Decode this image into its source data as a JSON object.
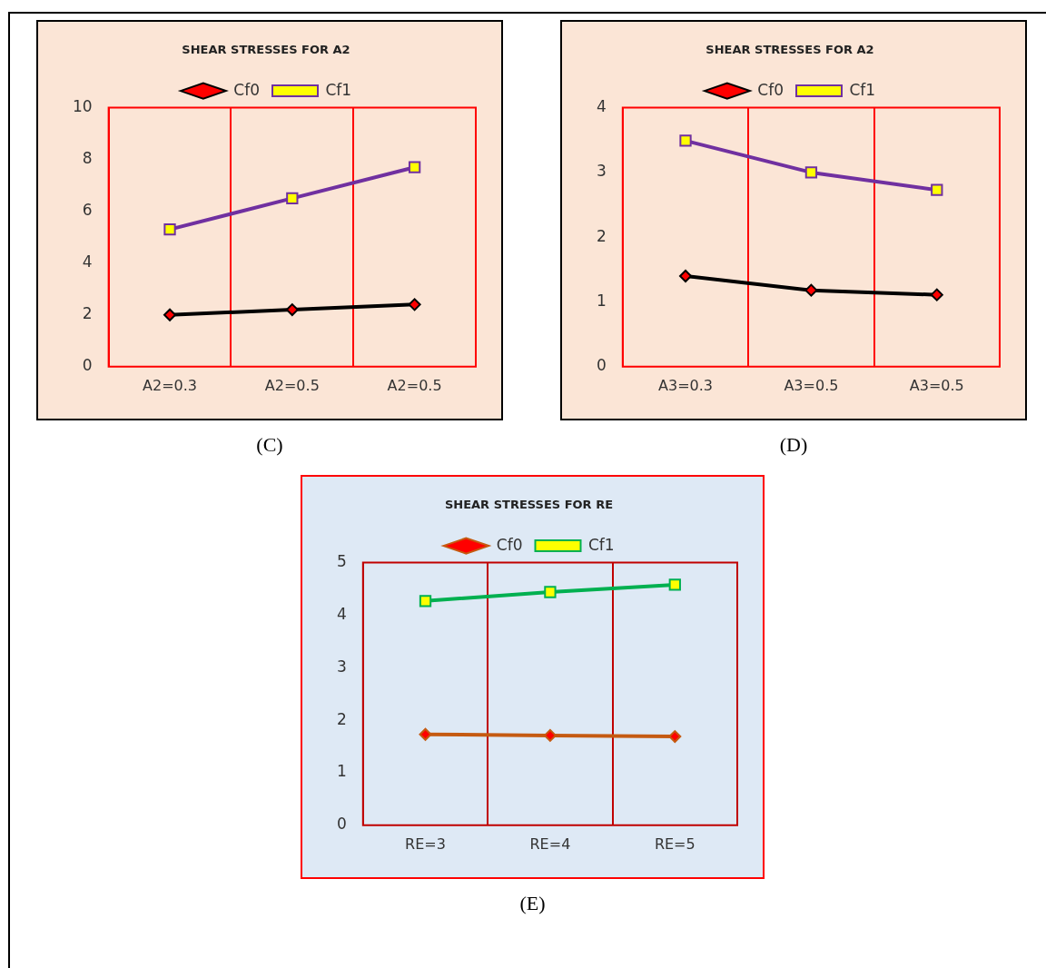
{
  "chart_data": [
    {
      "type": "line",
      "title": "SHEAR STRESSES FOR A2",
      "categories": [
        "A2=0.3",
        "A2=0.5",
        "A2=0.5"
      ],
      "series": [
        {
          "name": "Cf0",
          "color": "#000000",
          "marker": "diamond",
          "values": [
            2.0,
            2.2,
            2.4
          ]
        },
        {
          "name": "Cf1",
          "color": "#7030a0",
          "marker": "square",
          "values": [
            5.3,
            6.5,
            7.7
          ]
        }
      ],
      "ylim": [
        0,
        10
      ],
      "yticks": [
        0,
        2,
        4,
        6,
        8,
        10
      ],
      "grid": "x",
      "legend": "top",
      "annotations": [
        "(C)"
      ]
    },
    {
      "type": "line",
      "title": "SHEAR STRESSES FOR A2",
      "categories": [
        "A3=0.3",
        "A3=0.5",
        "A3=0.5"
      ],
      "series": [
        {
          "name": "Cf0",
          "color": "#000000",
          "marker": "diamond",
          "values": [
            1.4,
            1.18,
            1.11
          ]
        },
        {
          "name": "Cf1",
          "color": "#7030a0",
          "marker": "square",
          "values": [
            3.49,
            3.0,
            2.73
          ]
        }
      ],
      "ylim": [
        0,
        4
      ],
      "yticks": [
        0,
        1,
        2,
        3,
        4
      ],
      "grid": "x",
      "legend": "top",
      "annotations": [
        "(D)"
      ]
    },
    {
      "type": "line",
      "title": "SHEAR STRESSES FOR RE",
      "categories": [
        "RE=3",
        "RE=4",
        "RE=5"
      ],
      "series": [
        {
          "name": "Cf0",
          "color": "#c55a11",
          "marker": "diamond",
          "values": [
            1.73,
            1.71,
            1.69
          ]
        },
        {
          "name": "Cf1",
          "color": "#00b050",
          "marker": "square",
          "values": [
            4.27,
            4.44,
            4.58
          ]
        }
      ],
      "ylim": [
        0,
        5
      ],
      "yticks": [
        0,
        1,
        2,
        3,
        4,
        5
      ],
      "grid": "x",
      "legend": "top",
      "annotations": [
        "(E)"
      ]
    }
  ]
}
